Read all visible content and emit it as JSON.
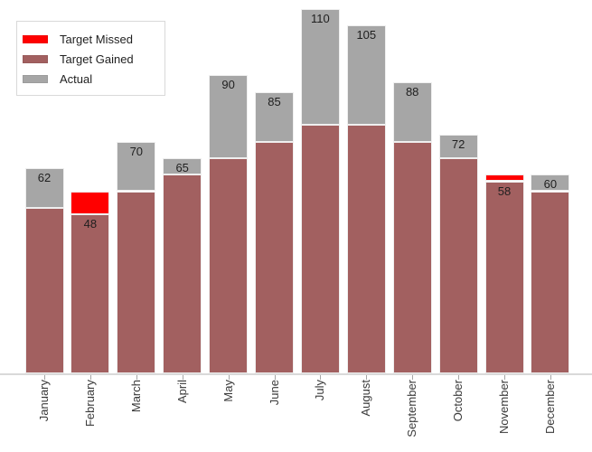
{
  "chart_data": {
    "type": "bar",
    "stacked": true,
    "title": "",
    "xlabel": "",
    "ylabel": "",
    "ylim": [
      0,
      113
    ],
    "grid": false,
    "legend_position": "top-left",
    "categories": [
      "January",
      "February",
      "March",
      "April",
      "May",
      "June",
      "July",
      "August",
      "September",
      "October",
      "November",
      "December"
    ],
    "series": [
      {
        "name": "Target Gained",
        "color": "#A26060",
        "values": [
          50,
          48,
          55,
          60,
          65,
          70,
          75,
          75,
          70,
          65,
          58,
          55
        ]
      },
      {
        "name": "Target Missed",
        "color": "#FF0000",
        "values": [
          0,
          7,
          0,
          0,
          0,
          0,
          0,
          0,
          0,
          0,
          2,
          0
        ]
      },
      {
        "name": "Actual",
        "color": "#A6A6A6",
        "values": [
          12,
          0,
          15,
          5,
          25,
          15,
          35,
          30,
          18,
          7,
          0,
          5
        ]
      }
    ],
    "actual_totals": [
      62,
      48,
      70,
      65,
      90,
      85,
      110,
      105,
      88,
      72,
      58,
      60
    ],
    "targets": [
      50,
      55,
      55,
      60,
      65,
      70,
      75,
      75,
      70,
      65,
      60,
      55
    ],
    "bar_labels": [
      "62",
      "48",
      "70",
      "65",
      "90",
      "85",
      "110",
      "105",
      "88",
      "72",
      "58",
      "60"
    ]
  },
  "legend": {
    "items": [
      {
        "label": "Target Missed",
        "color": "#FF0000"
      },
      {
        "label": "Target Gained",
        "color": "#A26060"
      },
      {
        "label": "Actual",
        "color": "#A6A6A6"
      }
    ]
  }
}
